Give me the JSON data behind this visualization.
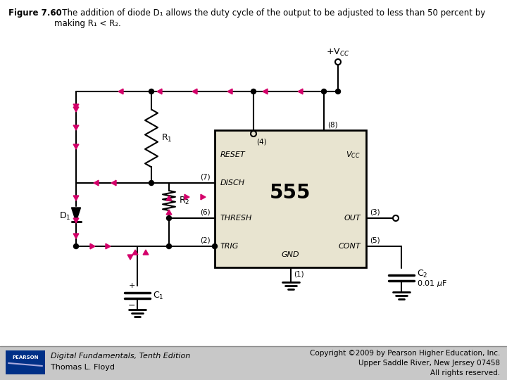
{
  "title_bold": "Figure 7.60",
  "title_rest": "   The addition of diode D₁ allows the duty cycle of the output to be adjusted to less than 50 percent by\nmaking R₁ < R₂.",
  "footer_left_line1": "Digital Fundamentals, Tenth Edition",
  "footer_left_line2": "Thomas L. Floyd",
  "footer_right_line1": "Copyright ©2009 by Pearson Higher Education, Inc.",
  "footer_right_line2": "Upper Saddle River, New Jersey 07458",
  "footer_right_line3": "All rights reserved.",
  "bg_color": "#ffffff",
  "ic_fill": "#e8e4d0",
  "ic_border": "#000000",
  "arrow_color": "#d4006a",
  "line_color": "#000000",
  "footer_bg": "#c8c8c8",
  "pearson_bg": "#003087"
}
